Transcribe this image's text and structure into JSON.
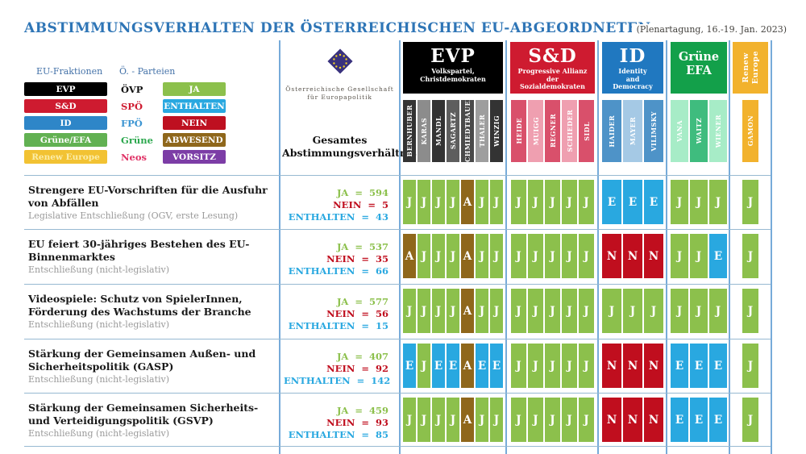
{
  "header": {
    "title": "ABSTIMMUNGSVERHALTEN DER ÖSTERREICHISCHEN  EU-ABGEORDNETEN",
    "date_note": "(Plenartagung, 16.-19. Jan. 2023)"
  },
  "legend": {
    "fractions_label": "EU-Fraktionen",
    "parties_label": "Ö. - Parteien",
    "fractions": [
      {
        "label": "EVP",
        "bg": "#000000",
        "fg": "#ffffff"
      },
      {
        "label": "S&D",
        "bg": "#CE1B30",
        "fg": "#ffffff"
      },
      {
        "label": "ID",
        "bg": "#2E86C8",
        "fg": "#ffffff"
      },
      {
        "label": "Grüne/EFA",
        "bg": "#62B152",
        "fg": "#ffffff"
      },
      {
        "label": "Renew Europe",
        "bg": "#F2C233",
        "fg": "#FBEDA9"
      }
    ],
    "parties": [
      {
        "label": "ÖVP",
        "color": "#111111"
      },
      {
        "label": "SPÖ",
        "color": "#CE1B30"
      },
      {
        "label": "FPÖ",
        "color": "#3C95D2"
      },
      {
        "label": "Grüne",
        "color": "#2CA84E"
      },
      {
        "label": "Neos",
        "color": "#E03366"
      }
    ],
    "votes": [
      {
        "label": "JA",
        "bg": "#8CC04C"
      },
      {
        "label": "ENTHALTEN",
        "bg": "#29A8E0"
      },
      {
        "label": "NEIN",
        "bg": "#BE1020"
      },
      {
        "label": "ABWESEND",
        "bg": "#8F671B"
      },
      {
        "label": "VORSITZ",
        "bg": "#7C3DA6"
      }
    ]
  },
  "org": {
    "line1": "Österreichische Gesellschaft",
    "line2": "für Europapolitik",
    "column_label_line1": "Gesamtes",
    "column_label_line2": "Abstimmungsverhältnis"
  },
  "stats_labels": {
    "ja": "JA",
    "nein": "NEIN",
    "enthalten": "ENTHALTEN"
  },
  "chart_data": {
    "type": "table",
    "title": "Abstimmungsverhalten der österreichischen EU-Abgeordneten",
    "period": "Plenartagung, 16.-19. Jan. 2023",
    "vote_codes": {
      "J": "JA",
      "N": "NEIN",
      "E": "ENTHALTEN",
      "A": "ABWESEND",
      "V": "VORSITZ"
    },
    "vote_colors": {
      "J": "#8CC04C",
      "N": "#C00E1E",
      "E": "#29A8E0",
      "A": "#8F671B",
      "V": "#7C3DA6"
    },
    "stat_colors": {
      "ja": "#8CC04C",
      "nein": "#C00E1E",
      "enthalten": "#29A8E0"
    },
    "groups": [
      {
        "id": "evp",
        "label": "EVP",
        "style": "big",
        "sub": [
          "Volkspartei,",
          "Christdemokraten"
        ],
        "bg": "#000000",
        "members": [
          {
            "n": "BERNHUBER",
            "c": "#333333"
          },
          {
            "n": "KARAS",
            "c": "#8C8C8C"
          },
          {
            "n": "MANDL",
            "c": "#333333"
          },
          {
            "n": "SAGARTZ",
            "c": "#5E5E5E"
          },
          {
            "n": "SCHMIEDTBAUER",
            "c": "#4A4A4A"
          },
          {
            "n": "THALER",
            "c": "#9E9E9E"
          },
          {
            "n": "WINZIG",
            "c": "#333333"
          }
        ]
      },
      {
        "id": "sd",
        "label": "S&D",
        "style": "big",
        "sub": [
          "Progressive Allianz",
          "der",
          "Sozialdemokraten"
        ],
        "bg": "#CE1B30",
        "members": [
          {
            "n": "HEIDE",
            "c": "#D9506B"
          },
          {
            "n": "MUIGG",
            "c": "#EF9FB0"
          },
          {
            "n": "REGNER",
            "c": "#D9506B"
          },
          {
            "n": "SCHIEDER",
            "c": "#EF9FB0"
          },
          {
            "n": "SIDL",
            "c": "#D9506B"
          }
        ]
      },
      {
        "id": "id",
        "label": "ID",
        "style": "big",
        "sub": [
          "Identity",
          "and",
          "Democracy"
        ],
        "bg": "#2078C0",
        "members": [
          {
            "n": "HAIDER",
            "c": "#4E93C8"
          },
          {
            "n": "MAYER",
            "c": "#A5C9E5"
          },
          {
            "n": "VILIMSKY",
            "c": "#4E93C8"
          }
        ]
      },
      {
        "id": "gruene",
        "label": "Grüne EFA",
        "style": "two",
        "label_lines": [
          "Grüne",
          "EFA"
        ],
        "bg": "#13A04A",
        "members": [
          {
            "n": "VANA",
            "c": "#A7ECC7"
          },
          {
            "n": "WAITZ",
            "c": "#3FBC7E"
          },
          {
            "n": "WIENER",
            "c": "#A7ECC7"
          }
        ]
      },
      {
        "id": "renew",
        "label": "Renew Europe",
        "style": "vert",
        "label_lines": [
          "Renew",
          "Europe"
        ],
        "bg": "#F2B22D",
        "members": [
          {
            "n": "GAMON",
            "c": "#F2B22D"
          }
        ]
      }
    ],
    "rows": [
      {
        "title": "Strengere EU-Vorschriften für die Ausfuhr von Abfällen",
        "subtitle": "Legislative Entschließung (OGV, erste Lesung)",
        "ja": 594,
        "nein": 5,
        "enthalten": 43,
        "votes": {
          "evp": [
            "J",
            "J",
            "J",
            "J",
            "A",
            "J",
            "J"
          ],
          "sd": [
            "J",
            "J",
            "J",
            "J",
            "J"
          ],
          "id": [
            "E",
            "E",
            "E"
          ],
          "gruene": [
            "J",
            "J",
            "J"
          ],
          "renew": [
            "J"
          ]
        }
      },
      {
        "title": "EU feiert 30-jähriges Bestehen des EU-Binnenmarktes",
        "subtitle": "Entschließung (nicht-legislativ)",
        "ja": 537,
        "nein": 35,
        "enthalten": 66,
        "votes": {
          "evp": [
            "A",
            "J",
            "J",
            "J",
            "A",
            "J",
            "J"
          ],
          "sd": [
            "J",
            "J",
            "J",
            "J",
            "J"
          ],
          "id": [
            "N",
            "N",
            "N"
          ],
          "gruene": [
            "J",
            "J",
            "E"
          ],
          "renew": [
            "J"
          ]
        }
      },
      {
        "title": "Videospiele: Schutz von SpielerInnen, Förderung des Wachstums der Branche",
        "subtitle": "Entschließung (nicht-legislativ)",
        "ja": 577,
        "nein": 56,
        "enthalten": 15,
        "votes": {
          "evp": [
            "J",
            "J",
            "J",
            "J",
            "A",
            "J",
            "J"
          ],
          "sd": [
            "J",
            "J",
            "J",
            "J",
            "J"
          ],
          "id": [
            "J",
            "J",
            "J"
          ],
          "gruene": [
            "J",
            "J",
            "J"
          ],
          "renew": [
            "J"
          ]
        }
      },
      {
        "title": "Stärkung der Gemeinsamen Außen- und Sicherheitspolitik (GASP)",
        "subtitle": "Entschließung (nicht-legislativ)",
        "ja": 407,
        "nein": 92,
        "enthalten": 142,
        "votes": {
          "evp": [
            "E",
            "J",
            "E",
            "E",
            "A",
            "E",
            "E"
          ],
          "sd": [
            "J",
            "J",
            "J",
            "J",
            "J"
          ],
          "id": [
            "N",
            "N",
            "N"
          ],
          "gruene": [
            "E",
            "E",
            "E"
          ],
          "renew": [
            "J"
          ]
        }
      },
      {
        "title": "Stärkung der Gemeinsamen Sicherheits- und Verteidigungspolitik (GSVP)",
        "subtitle": "Entschließung (nicht-legislativ)",
        "ja": 459,
        "nein": 93,
        "enthalten": 85,
        "votes": {
          "evp": [
            "J",
            "J",
            "J",
            "J",
            "A",
            "J",
            "J"
          ],
          "sd": [
            "J",
            "J",
            "J",
            "J",
            "J"
          ],
          "id": [
            "N",
            "N",
            "N"
          ],
          "gruene": [
            "E",
            "E",
            "E"
          ],
          "renew": [
            "J"
          ]
        }
      }
    ]
  }
}
